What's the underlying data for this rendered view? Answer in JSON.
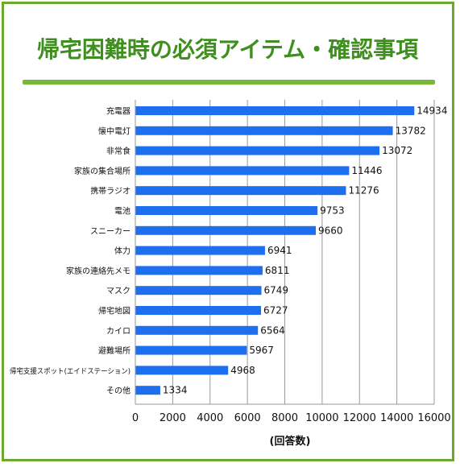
{
  "title": "帰宅困難時の必須アイテム・確認事項",
  "colors": {
    "frame": "#6aaa2c",
    "title": "#3f8f1f",
    "rule": "#7ab73a",
    "bar": "#1e6ef0",
    "grid": "#9a9a9a",
    "text": "#111111"
  },
  "chart_data": {
    "type": "bar",
    "orientation": "horizontal",
    "categories": [
      "充電器",
      "懐中電灯",
      "非常食",
      "家族の集合場所",
      "携帯ラジオ",
      "電池",
      "スニーカー",
      "体力",
      "家族の連絡先メモ",
      "マスク",
      "帰宅地図",
      "カイロ",
      "避難場所",
      "帰宅支援スポット(エイドステーション)",
      "その他"
    ],
    "values": [
      14934,
      13782,
      13072,
      11446,
      11276,
      9753,
      9660,
      6941,
      6811,
      6749,
      6727,
      6564,
      5967,
      4968,
      1334
    ],
    "x_ticks": [
      "0",
      "2000",
      "4000",
      "6000",
      "8000",
      "10000",
      "12000",
      "14000",
      "16000"
    ],
    "xlim": [
      0,
      16000
    ],
    "xlabel": "(回答数)",
    "ylabel": "",
    "grid": true,
    "legend": "none"
  }
}
